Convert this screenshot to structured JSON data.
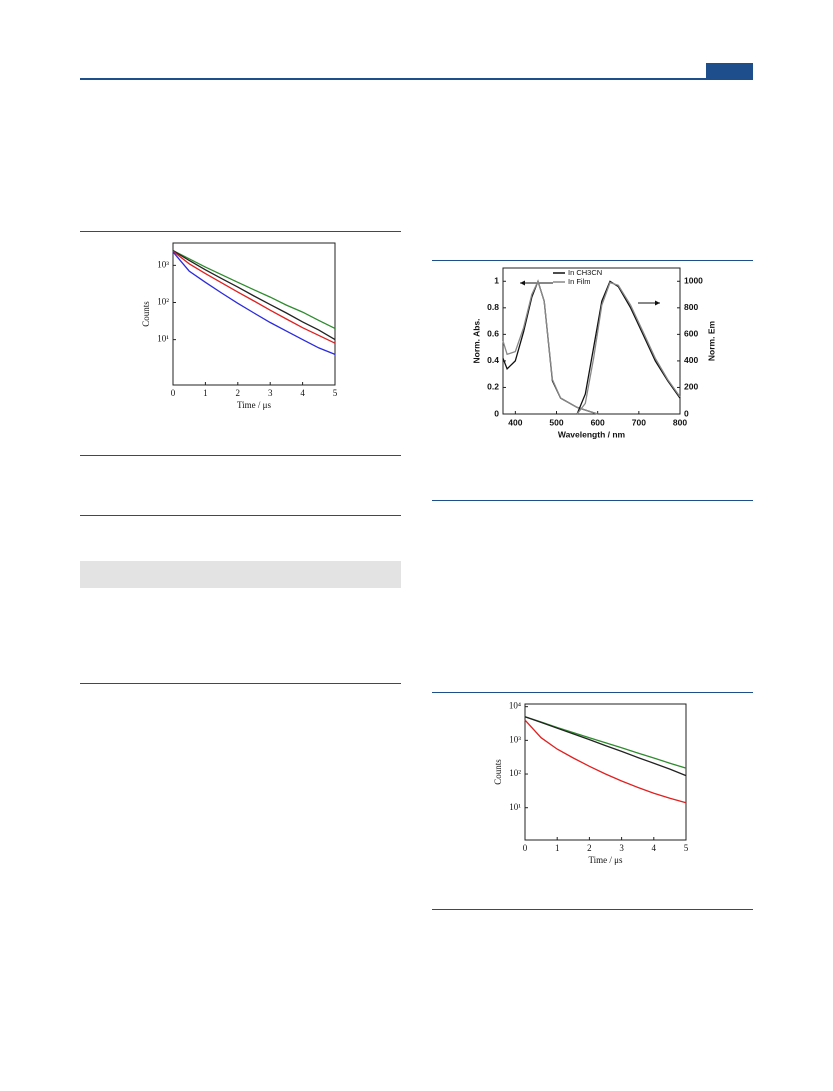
{
  "chart_data": [
    {
      "type": "line",
      "ylog": true,
      "xlabel": "Time / μs",
      "ylabel": "Counts",
      "x": [
        0,
        0.5,
        1,
        1.5,
        2,
        2.5,
        3,
        3.5,
        4,
        4.5,
        5
      ],
      "xlim": [
        0,
        5
      ],
      "xticks": [
        0,
        1,
        2,
        3,
        4,
        5
      ],
      "ylim": [
        0.6,
        4000
      ],
      "yticks": [
        {
          "value": 10,
          "label": "10¹"
        },
        {
          "value": 100,
          "label": "10²"
        },
        {
          "value": 1000,
          "label": "10³"
        }
      ],
      "series": [
        {
          "color": "#2e8b2e",
          "values": [
            2500,
            1500,
            900,
            560,
            350,
            220,
            140,
            85,
            55,
            33,
            20
          ]
        },
        {
          "color": "#222222",
          "values": [
            2500,
            1350,
            760,
            440,
            260,
            150,
            88,
            52,
            30,
            18,
            10
          ]
        },
        {
          "color": "#e02020",
          "values": [
            2400,
            1100,
            600,
            340,
            190,
            110,
            62,
            36,
            21,
            13,
            8
          ]
        },
        {
          "color": "#2a2ae0",
          "values": [
            2300,
            700,
            350,
            180,
            95,
            52,
            29,
            17,
            10,
            6,
            4
          ]
        }
      ]
    },
    {
      "type": "line",
      "xlabel": "Wavelength / nm",
      "ylabel": "Norm. Abs.",
      "y2label": "Norm. Em",
      "xlim": [
        370,
        800
      ],
      "xticks": [
        400,
        500,
        600,
        700,
        800
      ],
      "ylim": [
        0,
        1.1
      ],
      "yticks": [
        0.0,
        0.2,
        0.4,
        0.6,
        0.8,
        1.0
      ],
      "y2lim": [
        0,
        1100
      ],
      "y2ticks": [
        0,
        200,
        400,
        600,
        800,
        1000
      ],
      "series": [
        {
          "name": "In CH3CN",
          "color": "#111111",
          "x": [
            370,
            380,
            400,
            420,
            440,
            455,
            470,
            490,
            510,
            550,
            590,
            600
          ],
          "values": [
            0.42,
            0.34,
            0.4,
            0.62,
            0.88,
            1.0,
            0.85,
            0.25,
            0.12,
            0.05,
            0.01,
            0
          ]
        },
        {
          "name": "In Film",
          "color": "#888888",
          "x": [
            370,
            380,
            400,
            420,
            440,
            455,
            470,
            490,
            510,
            550,
            590,
            600
          ],
          "values": [
            0.55,
            0.45,
            0.47,
            0.65,
            0.9,
            1.0,
            0.85,
            0.26,
            0.12,
            0.05,
            0.01,
            0
          ]
        },
        {
          "axis": "y2",
          "color": "#111111",
          "x": [
            550,
            570,
            590,
            610,
            630,
            650,
            680,
            710,
            740,
            770,
            800
          ],
          "values": [
            0,
            150,
            500,
            850,
            1000,
            960,
            800,
            600,
            400,
            250,
            120
          ]
        },
        {
          "axis": "y2",
          "color": "#888888",
          "x": [
            550,
            570,
            590,
            610,
            630,
            650,
            680,
            710,
            740,
            770,
            800
          ],
          "values": [
            0,
            80,
            420,
            820,
            990,
            970,
            820,
            620,
            420,
            260,
            130
          ]
        }
      ]
    },
    {
      "type": "line",
      "ylog": true,
      "xlabel": "Time / μs",
      "ylabel": "Counts",
      "x": [
        0,
        0.5,
        1,
        1.5,
        2,
        2.5,
        3,
        3.5,
        4,
        4.5,
        5
      ],
      "xlim": [
        0,
        5
      ],
      "xticks": [
        0,
        1,
        2,
        3,
        4,
        5
      ],
      "ylim": [
        1.1,
        12000
      ],
      "yticks": [
        {
          "value": 10,
          "label": "10¹"
        },
        {
          "value": 100,
          "label": "10²"
        },
        {
          "value": 1000,
          "label": "10³"
        },
        {
          "value": 10000,
          "label": "10⁴"
        }
      ],
      "series": [
        {
          "color": "#2e8b2e",
          "values": [
            5000,
            3500,
            2400,
            1700,
            1200,
            850,
            600,
            420,
            300,
            210,
            150
          ]
        },
        {
          "color": "#222222",
          "values": [
            5000,
            3400,
            2300,
            1550,
            1050,
            700,
            470,
            310,
            210,
            140,
            90
          ]
        },
        {
          "color": "#e02020",
          "values": [
            4000,
            1200,
            550,
            300,
            170,
            100,
            62,
            40,
            27,
            19,
            14
          ]
        }
      ]
    }
  ]
}
